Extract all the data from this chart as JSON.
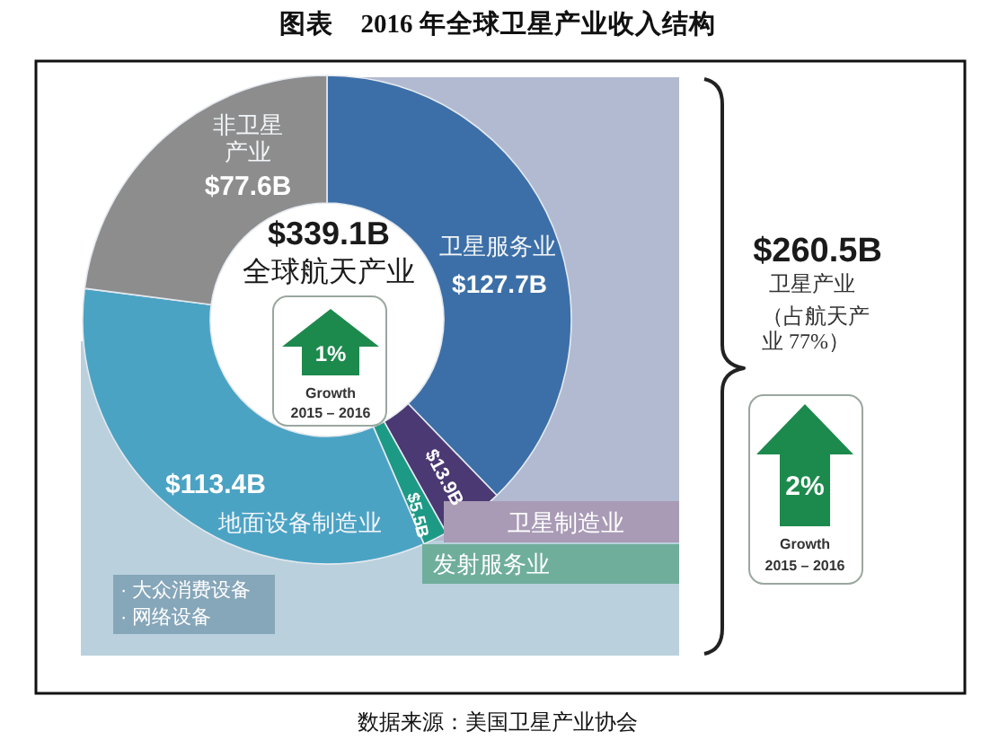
{
  "chart_data": {
    "type": "donut",
    "title": "图表　2016 年全球卫星产业收入结构",
    "categories": [
      "卫星服务业",
      "卫星制造业",
      "发射服务业",
      "地面设备制造业",
      "非卫星产业"
    ],
    "values": [
      127.7,
      13.9,
      5.5,
      113.4,
      77.6
    ],
    "colors": [
      "#3c6fa7",
      "#4a3972",
      "#1d9a86",
      "#4ba3c4",
      "#8d8d8d"
    ],
    "value_labels": [
      "$127.7B",
      "$13.9B",
      "$5.5B",
      "$113.4B",
      "$77.6B"
    ],
    "annotations": [
      "$339.1B",
      "全球航天产业",
      "1%",
      "Growth",
      "2015 – 2016",
      "$260.5B",
      "卫星产业",
      "（占航天产业 77%）",
      "2%",
      "Growth",
      "2015 – 2016",
      "· 大众消费设备",
      "· 网络设备",
      "数据来源：美国卫星产业协会"
    ]
  }
}
